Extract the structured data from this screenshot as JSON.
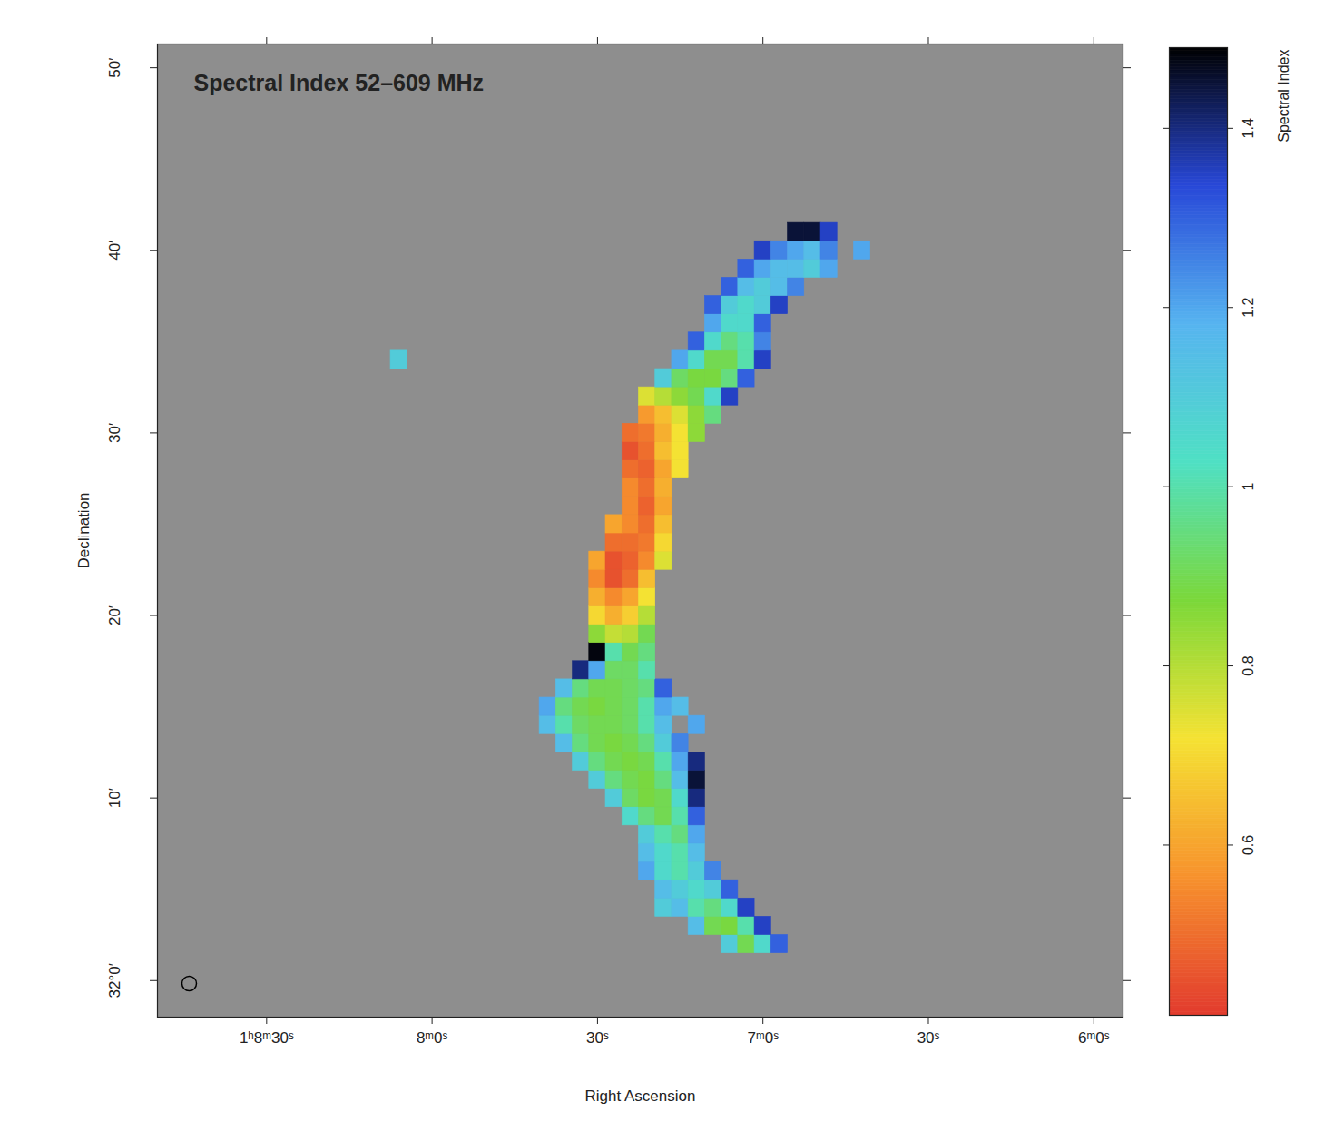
{
  "chart_data": {
    "type": "heatmap",
    "title": "Spectral Index 52–609 MHz",
    "x_label": "Right Ascension",
    "y_label": "Declination",
    "xlim": [
      529.8,
      354.7
    ],
    "xticks": [
      {
        "value": 510,
        "label": "1ʰ8ᵐ30ˢ"
      },
      {
        "value": 480,
        "label": "8ᵐ0ˢ"
      },
      {
        "value": 450,
        "label": "30ˢ"
      },
      {
        "value": 420,
        "label": "7ᵐ0ˢ"
      },
      {
        "value": 390,
        "label": "30ˢ"
      },
      {
        "value": 360,
        "label": "6ᵐ0ˢ"
      }
    ],
    "ylim": [
      -2,
      51.3
    ],
    "yticks": [
      {
        "value": 0,
        "label": "32°0′"
      },
      {
        "value": 10,
        "label": "10′"
      },
      {
        "value": 20,
        "label": "20′"
      },
      {
        "value": 30,
        "label": "30′"
      },
      {
        "value": 40,
        "label": "40′"
      },
      {
        "value": 50,
        "label": "50′"
      }
    ],
    "cells": [
      {
        "dec": 2,
        "ra": [
          426,
          423,
          420,
          417
        ],
        "values": [
          1.1,
          0.9,
          1.05,
          1.3
        ]
      },
      {
        "dec": 3,
        "ra": [
          432,
          429,
          426,
          423,
          420
        ],
        "values": [
          1.15,
          0.9,
          0.88,
          1.0,
          1.35
        ]
      },
      {
        "dec": 4,
        "ra": [
          438,
          435,
          432,
          429,
          426,
          423
        ],
        "values": [
          1.1,
          1.15,
          1.0,
          0.95,
          1.05,
          1.35
        ]
      },
      {
        "dec": 5,
        "ra": [
          438,
          435,
          432,
          429,
          426
        ],
        "values": [
          1.15,
          1.1,
          1.05,
          1.1,
          1.3
        ]
      },
      {
        "dec": 6,
        "ra": [
          441,
          438,
          435,
          432,
          429
        ],
        "values": [
          1.2,
          1.05,
          1.0,
          1.1,
          1.25
        ]
      },
      {
        "dec": 7,
        "ra": [
          441,
          438,
          435,
          432
        ],
        "values": [
          1.15,
          1.05,
          1.0,
          1.15
        ]
      },
      {
        "dec": 8,
        "ra": [
          441,
          438,
          435,
          432
        ],
        "values": [
          1.1,
          1.0,
          0.95,
          1.2
        ]
      },
      {
        "dec": 9,
        "ra": [
          444,
          441,
          438,
          435,
          432
        ],
        "values": [
          1.05,
          0.95,
          0.9,
          1.0,
          1.3
        ]
      },
      {
        "dec": 10,
        "ra": [
          447,
          444,
          441,
          438,
          435,
          432
        ],
        "values": [
          1.1,
          0.92,
          0.88,
          0.9,
          1.05,
          1.4
        ]
      },
      {
        "dec": 11,
        "ra": [
          450,
          447,
          444,
          441,
          438,
          435,
          432
        ],
        "values": [
          1.1,
          0.95,
          0.9,
          0.88,
          0.95,
          1.15,
          1.45
        ]
      },
      {
        "dec": 12,
        "ra": [
          453,
          450,
          447,
          444,
          441,
          438,
          435,
          432
        ],
        "values": [
          1.1,
          0.95,
          0.9,
          0.88,
          0.9,
          1.0,
          1.2,
          1.4
        ]
      },
      {
        "dec": 13,
        "ra": [
          456,
          453,
          450,
          447,
          444,
          441,
          438,
          435
        ],
        "values": [
          1.15,
          0.95,
          0.9,
          0.88,
          0.9,
          0.95,
          1.1,
          1.25
        ]
      },
      {
        "dec": 14,
        "ra": [
          459,
          456,
          453,
          450,
          447,
          444,
          441,
          438,
          432
        ],
        "values": [
          1.15,
          1.0,
          0.92,
          0.9,
          0.9,
          0.92,
          1.0,
          1.15,
          1.2
        ]
      },
      {
        "dec": 15,
        "ra": [
          459,
          456,
          453,
          450,
          447,
          444,
          441,
          438,
          435
        ],
        "values": [
          1.2,
          0.95,
          0.9,
          0.88,
          0.9,
          0.92,
          1.0,
          1.2,
          1.15
        ]
      },
      {
        "dec": 16,
        "ra": [
          456,
          453,
          450,
          447,
          444,
          441,
          438
        ],
        "values": [
          1.15,
          0.95,
          0.9,
          0.9,
          0.92,
          0.95,
          1.3
        ]
      },
      {
        "dec": 17,
        "ra": [
          453,
          450,
          447,
          444,
          441
        ],
        "values": [
          1.4,
          1.2,
          0.92,
          0.92,
          1.0
        ]
      },
      {
        "dec": 18,
        "ra": [
          450,
          447,
          444,
          441
        ],
        "values": [
          1.48,
          1.0,
          0.9,
          0.95
        ]
      },
      {
        "dec": 19,
        "ra": [
          450,
          447,
          444,
          441
        ],
        "values": [
          0.85,
          0.78,
          0.8,
          0.9
        ]
      },
      {
        "dec": 20,
        "ra": [
          450,
          447,
          444,
          441
        ],
        "values": [
          0.7,
          0.62,
          0.68,
          0.8
        ]
      },
      {
        "dec": 21,
        "ra": [
          450,
          447,
          444,
          441
        ],
        "values": [
          0.62,
          0.55,
          0.6,
          0.72
        ]
      },
      {
        "dec": 22,
        "ra": [
          450,
          447,
          444,
          441
        ],
        "values": [
          0.55,
          0.45,
          0.5,
          0.65
        ]
      },
      {
        "dec": 23,
        "ra": [
          450,
          447,
          444,
          441,
          438
        ],
        "values": [
          0.6,
          0.45,
          0.48,
          0.55,
          0.75
        ]
      },
      {
        "dec": 24,
        "ra": [
          447,
          444,
          441,
          438
        ],
        "values": [
          0.5,
          0.5,
          0.52,
          0.7
        ]
      },
      {
        "dec": 25,
        "ra": [
          447,
          444,
          441,
          438
        ],
        "values": [
          0.6,
          0.55,
          0.5,
          0.65
        ]
      },
      {
        "dec": 26,
        "ra": [
          444,
          441,
          438
        ],
        "values": [
          0.55,
          0.48,
          0.6
        ]
      },
      {
        "dec": 27,
        "ra": [
          444,
          441,
          438
        ],
        "values": [
          0.55,
          0.5,
          0.62
        ]
      },
      {
        "dec": 28,
        "ra": [
          444,
          441,
          438,
          435
        ],
        "values": [
          0.5,
          0.48,
          0.6,
          0.72
        ]
      },
      {
        "dec": 29,
        "ra": [
          444,
          441,
          438,
          435
        ],
        "values": [
          0.45,
          0.5,
          0.65,
          0.72
        ]
      },
      {
        "dec": 30,
        "ra": [
          444,
          441,
          438,
          435,
          432
        ],
        "values": [
          0.5,
          0.52,
          0.62,
          0.72,
          0.85
        ]
      },
      {
        "dec": 31,
        "ra": [
          441,
          438,
          435,
          432,
          429
        ],
        "values": [
          0.58,
          0.65,
          0.75,
          0.85,
          0.95
        ]
      },
      {
        "dec": 32,
        "ra": [
          441,
          438,
          435,
          432,
          429,
          426
        ],
        "values": [
          0.75,
          0.8,
          0.85,
          0.9,
          1.05,
          1.35
        ]
      },
      {
        "dec": 33,
        "ra": [
          438,
          435,
          432,
          429,
          426,
          423
        ],
        "values": [
          1.1,
          0.92,
          0.88,
          0.88,
          0.95,
          1.3
        ]
      },
      {
        "dec": 34,
        "ra": [
          435,
          432,
          429,
          426,
          423,
          420
        ],
        "values": [
          1.2,
          1.05,
          0.9,
          0.9,
          1.0,
          1.35
        ]
      },
      {
        "dec": 34,
        "ra": [
          486
        ],
        "values": [
          1.1
        ]
      },
      {
        "dec": 35,
        "ra": [
          432,
          429,
          426,
          423,
          420
        ],
        "values": [
          1.3,
          1.05,
          0.95,
          1.0,
          1.25
        ]
      },
      {
        "dec": 36,
        "ra": [
          429,
          426,
          423,
          420
        ],
        "values": [
          1.2,
          1.05,
          1.05,
          1.3
        ]
      },
      {
        "dec": 37,
        "ra": [
          429,
          426,
          423,
          420,
          417
        ],
        "values": [
          1.3,
          1.1,
          1.05,
          1.1,
          1.35
        ]
      },
      {
        "dec": 38,
        "ra": [
          426,
          423,
          420,
          417,
          414
        ],
        "values": [
          1.3,
          1.15,
          1.1,
          1.15,
          1.25
        ]
      },
      {
        "dec": 39,
        "ra": [
          423,
          420,
          417,
          414,
          411,
          408
        ],
        "values": [
          1.3,
          1.2,
          1.15,
          1.15,
          1.1,
          1.2
        ]
      },
      {
        "dec": 40,
        "ra": [
          420,
          417,
          414,
          411,
          408,
          402
        ],
        "values": [
          1.35,
          1.25,
          1.2,
          1.15,
          1.25,
          1.2
        ]
      },
      {
        "dec": 41,
        "ra": [
          414,
          411,
          408
        ],
        "values": [
          1.45,
          1.45,
          1.35
        ]
      }
    ],
    "colorbar": {
      "label": "Spectral Index",
      "range": [
        0.41,
        1.49
      ],
      "ticks": [
        0.6,
        0.8,
        1,
        1.2,
        1.4
      ],
      "colors": [
        "#e23b2e",
        "#f7922d",
        "#f5e233",
        "#7bd83a",
        "#4fe0c4",
        "#56b4f0",
        "#2848d8",
        "#000000"
      ]
    }
  }
}
